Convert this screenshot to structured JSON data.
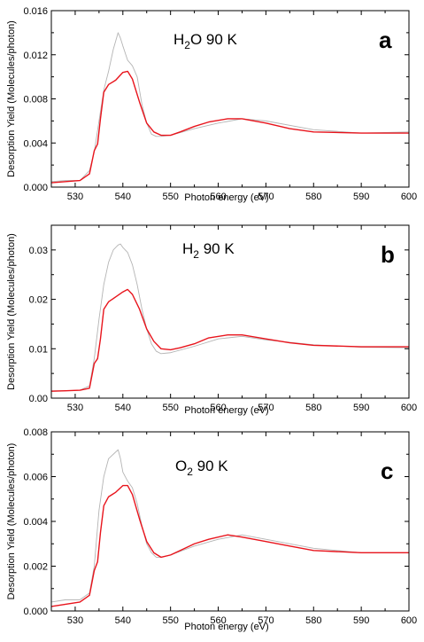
{
  "chart_data": [
    {
      "type": "line",
      "panel": "a",
      "annotation": "H2O 90 K",
      "annotation_main": "H",
      "annotation_sub": "2",
      "annotation_rest": "O 90 K",
      "xlabel": "Photon energy (eV)",
      "ylabel": "Desorption Yield (Molecules/photon)",
      "xlim": [
        525,
        600
      ],
      "ylim": [
        0,
        0.016
      ],
      "xticks": [
        530,
        540,
        550,
        560,
        570,
        580,
        590,
        600
      ],
      "yticks": [
        0.0,
        0.004,
        0.008,
        0.012,
        0.016
      ],
      "ytick_labels": [
        "0.000",
        "0.004",
        "0.008",
        "0.012",
        "0.016"
      ],
      "series": [
        {
          "color": "#e8141c",
          "x": [
            525,
            528,
            531,
            533,
            534,
            534.7,
            535.3,
            536,
            537,
            538.5,
            540,
            541,
            542,
            543.5,
            545,
            546.5,
            548,
            550,
            552,
            555,
            558,
            562,
            565,
            570,
            575,
            580,
            590,
            600
          ],
          "values": [
            0.0004,
            0.0005,
            0.0006,
            0.0012,
            0.0033,
            0.0039,
            0.0062,
            0.0086,
            0.0093,
            0.0097,
            0.0104,
            0.0105,
            0.0098,
            0.0077,
            0.0058,
            0.005,
            0.0047,
            0.0047,
            0.005,
            0.0055,
            0.0059,
            0.0062,
            0.0062,
            0.0058,
            0.0053,
            0.005,
            0.0049,
            0.0049
          ]
        },
        {
          "color": "#b4b4b4",
          "x": [
            525,
            528,
            531,
            533,
            534,
            535,
            536,
            537,
            538,
            539,
            539.5,
            540,
            541,
            542,
            543,
            544,
            545,
            546,
            547,
            548,
            550,
            555,
            560,
            565,
            570,
            580,
            590,
            600
          ],
          "values": [
            0.0005,
            0.0006,
            0.0006,
            0.0015,
            0.0032,
            0.006,
            0.0088,
            0.0105,
            0.0125,
            0.014,
            0.0135,
            0.0128,
            0.0115,
            0.011,
            0.01,
            0.0075,
            0.0058,
            0.0048,
            0.0046,
            0.0046,
            0.0047,
            0.0053,
            0.0058,
            0.0062,
            0.006,
            0.0052,
            0.0049,
            0.005
          ]
        }
      ]
    },
    {
      "type": "line",
      "panel": "b",
      "annotation": "H2 90 K",
      "annotation_main": "H",
      "annotation_sub": "2",
      "annotation_rest": " 90 K",
      "xlabel": "Photon energy (eV)",
      "ylabel": "Desorption Yield (Molecules/photon)",
      "xlim": [
        525,
        600
      ],
      "ylim": [
        0,
        0.035
      ],
      "xticks": [
        530,
        540,
        550,
        560,
        570,
        580,
        590,
        600
      ],
      "yticks": [
        0.0,
        0.01,
        0.02,
        0.03
      ],
      "ytick_labels": [
        "0.00",
        "0.01",
        "0.02",
        "0.03"
      ],
      "series": [
        {
          "color": "#e8141c",
          "x": [
            525,
            528,
            531,
            533,
            534,
            534.7,
            535.3,
            536,
            537,
            538.5,
            540,
            541,
            542,
            543.5,
            545,
            546.5,
            548,
            550,
            552,
            555,
            558,
            562,
            565,
            570,
            575,
            580,
            590,
            600
          ],
          "values": [
            0.0014,
            0.0015,
            0.0016,
            0.002,
            0.007,
            0.008,
            0.012,
            0.018,
            0.0195,
            0.0205,
            0.0215,
            0.022,
            0.021,
            0.018,
            0.014,
            0.0115,
            0.01,
            0.0098,
            0.0102,
            0.011,
            0.0122,
            0.0128,
            0.0128,
            0.012,
            0.0112,
            0.0107,
            0.0104,
            0.0104
          ]
        },
        {
          "color": "#b4b4b4",
          "x": [
            525,
            528,
            531,
            533,
            534,
            535,
            536,
            537,
            538,
            539,
            539.5,
            540,
            541,
            542,
            543,
            544,
            545,
            546,
            547,
            548,
            550,
            555,
            560,
            565,
            570,
            580,
            590,
            600
          ],
          "values": [
            0.0015,
            0.0015,
            0.0016,
            0.0025,
            0.008,
            0.016,
            0.023,
            0.0275,
            0.03,
            0.031,
            0.0312,
            0.0305,
            0.0295,
            0.027,
            0.023,
            0.018,
            0.014,
            0.011,
            0.0095,
            0.009,
            0.0092,
            0.0105,
            0.012,
            0.0125,
            0.0118,
            0.0108,
            0.0103,
            0.0102
          ]
        }
      ]
    },
    {
      "type": "line",
      "panel": "c",
      "annotation": "O2 90 K",
      "annotation_main": "O",
      "annotation_sub": "2",
      "annotation_rest": " 90 K",
      "xlabel": "Photon energy (eV)",
      "ylabel": "Desorption Yield (Molecules/photon)",
      "xlim": [
        525,
        600
      ],
      "ylim": [
        0,
        0.008
      ],
      "xticks": [
        530,
        540,
        550,
        560,
        570,
        580,
        590,
        600
      ],
      "yticks": [
        0.0,
        0.002,
        0.004,
        0.006,
        0.008
      ],
      "ytick_labels": [
        "0.000",
        "0.002",
        "0.004",
        "0.006",
        "0.008"
      ],
      "series": [
        {
          "color": "#e8141c",
          "x": [
            525,
            528,
            531,
            533,
            534,
            534.7,
            535.3,
            536,
            537,
            538.5,
            540,
            541,
            542,
            543.5,
            545,
            546.5,
            548,
            550,
            552,
            555,
            558,
            562,
            565,
            570,
            575,
            580,
            590,
            600
          ],
          "values": [
            0.0002,
            0.0003,
            0.0004,
            0.0007,
            0.0018,
            0.0022,
            0.0035,
            0.0047,
            0.0051,
            0.0053,
            0.0056,
            0.0056,
            0.0052,
            0.0041,
            0.0031,
            0.0026,
            0.0024,
            0.0025,
            0.0027,
            0.003,
            0.0032,
            0.0034,
            0.0033,
            0.0031,
            0.0029,
            0.0027,
            0.0026,
            0.0026
          ]
        },
        {
          "color": "#b4b4b4",
          "x": [
            525,
            528,
            531,
            533,
            534,
            535,
            536,
            537,
            538,
            539,
            539.5,
            540,
            541,
            542,
            543,
            544,
            545,
            546,
            547,
            548,
            550,
            555,
            560,
            565,
            570,
            580,
            590,
            600
          ],
          "values": [
            0.0004,
            0.0005,
            0.0005,
            0.0008,
            0.002,
            0.0045,
            0.006,
            0.0068,
            0.007,
            0.0072,
            0.0068,
            0.0062,
            0.0058,
            0.0055,
            0.0048,
            0.0038,
            0.003,
            0.0026,
            0.0024,
            0.0024,
            0.0025,
            0.0029,
            0.0032,
            0.0034,
            0.0032,
            0.0028,
            0.0026,
            0.0026
          ]
        }
      ]
    }
  ]
}
